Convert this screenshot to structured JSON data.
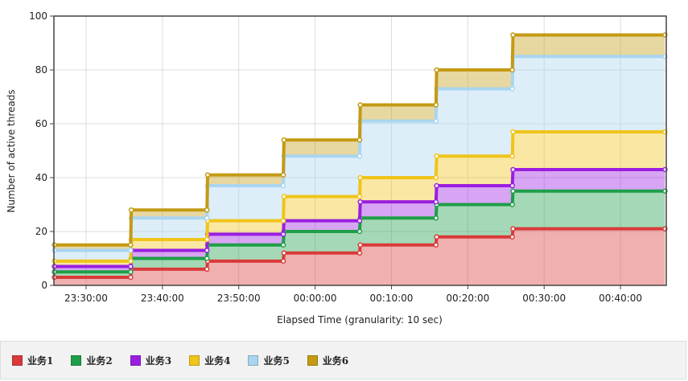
{
  "chart_data": {
    "type": "stacked_area",
    "y_label": "Number of active threads",
    "x_label": "Elapsed Time (granularity: 10 sec)",
    "x": [
      "23:25:50",
      "23:35:50",
      "23:35:55",
      "23:45:50",
      "23:45:55",
      "23:55:50",
      "23:55:55",
      "00:05:50",
      "00:05:55",
      "00:15:50",
      "00:15:55",
      "00:25:50",
      "00:25:55",
      "00:45:50"
    ],
    "xlim": [
      "23:25:47",
      "00:46:00"
    ],
    "xticks": [
      "23:30:00",
      "23:40:00",
      "23:50:00",
      "00:00:00",
      "00:10:00",
      "00:20:00",
      "00:30:00",
      "00:40:00"
    ],
    "ylim": [
      0,
      100
    ],
    "yticks": [
      0,
      20,
      40,
      60,
      80,
      100
    ],
    "grid": true,
    "legend": "bottom",
    "series": [
      {
        "name": "业务1",
        "color": "#d93a3a",
        "values": [
          3,
          3,
          6,
          6,
          9,
          9,
          12,
          12,
          15,
          15,
          18,
          18,
          21,
          21
        ]
      },
      {
        "name": "业务2",
        "color": "#1e9e48",
        "values": [
          2,
          2,
          4,
          4,
          6,
          6,
          8,
          8,
          10,
          10,
          12,
          12,
          14,
          14
        ]
      },
      {
        "name": "业务3",
        "color": "#9a1ee0",
        "values": [
          2,
          2,
          3,
          3,
          4,
          4,
          4,
          4,
          6,
          6,
          7,
          7,
          8,
          8
        ]
      },
      {
        "name": "业务4",
        "color": "#f0c419",
        "values": [
          2,
          2,
          4,
          4,
          5,
          5,
          9,
          9,
          9,
          9,
          11,
          11,
          14,
          14
        ]
      },
      {
        "name": "业务5",
        "color": "#a9d5f0",
        "values": [
          4,
          4,
          8,
          8,
          13,
          13,
          15,
          15,
          21,
          21,
          25,
          25,
          28,
          28
        ]
      },
      {
        "name": "业务6",
        "color": "#c49a14",
        "values": [
          2,
          2,
          3,
          3,
          4,
          4,
          6,
          6,
          6,
          6,
          7,
          7,
          8,
          8
        ]
      }
    ]
  }
}
